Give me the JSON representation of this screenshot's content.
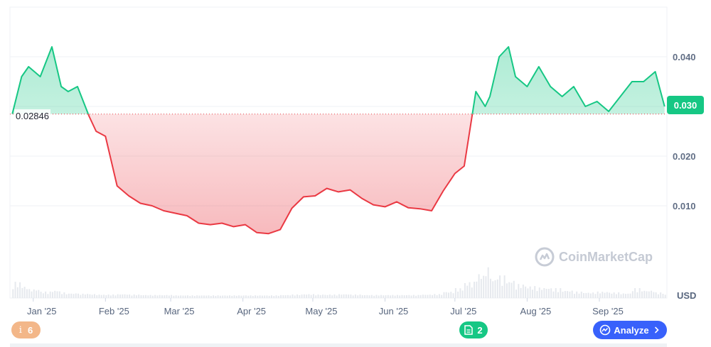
{
  "chart_data": {
    "type": "area",
    "baseline_value": 0.02846,
    "baseline_label": "0.02846",
    "current_price_label": "0.030",
    "currency": "USD",
    "ylim": [
      0.0,
      0.05
    ],
    "yticks": [
      {
        "value": 0.01,
        "label": "0.010"
      },
      {
        "value": 0.02,
        "label": "0.020"
      },
      {
        "value": 0.03,
        "label": "0.030"
      },
      {
        "value": 0.04,
        "label": "0.040"
      }
    ],
    "xlim": [
      "2024-12-22",
      "2025-09-30"
    ],
    "xticks": [
      {
        "date": "2025-01-01",
        "label": "Jan '25"
      },
      {
        "date": "2025-02-01",
        "label": "Feb '25"
      },
      {
        "date": "2025-03-01",
        "label": "Mar '25"
      },
      {
        "date": "2025-04-01",
        "label": "Apr '25"
      },
      {
        "date": "2025-05-01",
        "label": "May '25"
      },
      {
        "date": "2025-06-01",
        "label": "Jun '25"
      },
      {
        "date": "2025-07-01",
        "label": "Jul '25"
      },
      {
        "date": "2025-08-01",
        "label": "Aug '25"
      },
      {
        "date": "2025-09-01",
        "label": "Sep '25"
      }
    ],
    "above_color": "#16c784",
    "below_color": "#ea3943",
    "series": [
      {
        "x": [
          "2024-12-23",
          "2024-12-27",
          "2024-12-30",
          "2025-01-04",
          "2025-01-09",
          "2025-01-13",
          "2025-01-16",
          "2025-01-20",
          "2025-01-25",
          "2025-01-28",
          "2025-02-01",
          "2025-02-06",
          "2025-02-11",
          "2025-02-16",
          "2025-02-21",
          "2025-02-26",
          "2025-03-03",
          "2025-03-08",
          "2025-03-13",
          "2025-03-18",
          "2025-03-23",
          "2025-03-28",
          "2025-04-02",
          "2025-04-07",
          "2025-04-12",
          "2025-04-17",
          "2025-04-22",
          "2025-04-27",
          "2025-05-02",
          "2025-05-07",
          "2025-05-12",
          "2025-05-17",
          "2025-05-22",
          "2025-05-27",
          "2025-06-01",
          "2025-06-06",
          "2025-06-11",
          "2025-06-16",
          "2025-06-21",
          "2025-06-26",
          "2025-07-01",
          "2025-07-05",
          "2025-07-10",
          "2025-07-14",
          "2025-07-16",
          "2025-07-20",
          "2025-07-24",
          "2025-07-27",
          "2025-08-01",
          "2025-08-06",
          "2025-08-11",
          "2025-08-16",
          "2025-08-21",
          "2025-08-26",
          "2025-08-31",
          "2025-09-05",
          "2025-09-10",
          "2025-09-15",
          "2025-09-20",
          "2025-09-25",
          "2025-09-29"
        ],
        "values": [
          0.0285,
          0.036,
          0.038,
          0.036,
          0.042,
          0.034,
          0.033,
          0.034,
          0.028,
          0.025,
          0.024,
          0.014,
          0.012,
          0.0105,
          0.01,
          0.009,
          0.0085,
          0.008,
          0.0065,
          0.0062,
          0.0065,
          0.0058,
          0.0062,
          0.0046,
          0.0044,
          0.0052,
          0.0095,
          0.0118,
          0.012,
          0.0135,
          0.0128,
          0.0132,
          0.0115,
          0.0102,
          0.0098,
          0.0108,
          0.0096,
          0.0094,
          0.009,
          0.013,
          0.0165,
          0.018,
          0.033,
          0.03,
          0.032,
          0.04,
          0.042,
          0.036,
          0.034,
          0.038,
          0.034,
          0.032,
          0.034,
          0.03,
          0.031,
          0.029,
          0.032,
          0.035,
          0.035,
          0.037,
          0.03
        ]
      }
    ],
    "volume": [
      0.35,
      0.25,
      0.18,
      0.12,
      0.15,
      0.1,
      0.08,
      0.07,
      0.06,
      0.05,
      0.05,
      0.06,
      0.05,
      0.04,
      0.04,
      0.04,
      0.03,
      0.03,
      0.03,
      0.03,
      0.03,
      0.03,
      0.03,
      0.03,
      0.03,
      0.04,
      0.05,
      0.06,
      0.05,
      0.05,
      0.06,
      0.05,
      0.04,
      0.04,
      0.04,
      0.04,
      0.04,
      0.05,
      0.06,
      0.12,
      0.2,
      0.35,
      0.55,
      0.7,
      0.45,
      0.5,
      0.4,
      0.3,
      0.25,
      0.22,
      0.2,
      0.15,
      0.12,
      0.1,
      0.12,
      0.1,
      0.08,
      0.2,
      0.15,
      0.1,
      0.05
    ]
  },
  "badges": {
    "info_count": "6",
    "news_count": "2",
    "analyze_label": "Analyze"
  },
  "watermark": "CoinMarketCap",
  "icons": {
    "info": "info-icon",
    "news": "document-icon",
    "analyze": "analyze-icon",
    "chevron": "chevron-right-icon",
    "logo": "coinmarketcap-logo-icon"
  }
}
